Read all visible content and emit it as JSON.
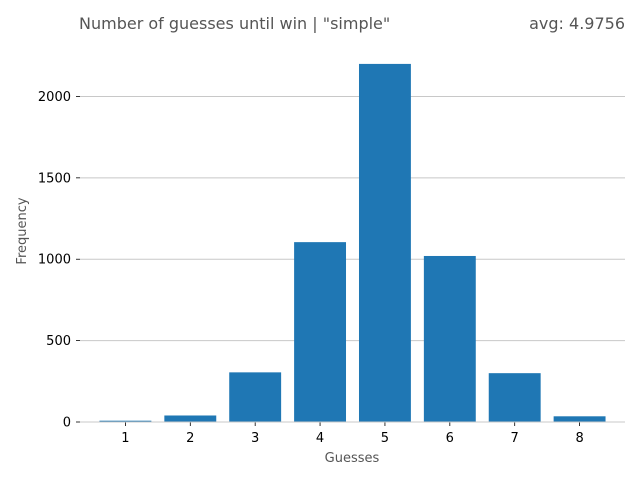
{
  "chart_data": {
    "type": "bar",
    "title": "Number of guesses until win | \"simple\"",
    "subtitle": "avg: 4.9756",
    "xlabel": "Guesses",
    "ylabel": "Frequency",
    "categories": [
      "1",
      "2",
      "3",
      "4",
      "5",
      "6",
      "7",
      "8"
    ],
    "values": [
      8,
      40,
      305,
      1105,
      2200,
      1020,
      300,
      35
    ],
    "x_ticks": [
      1,
      2,
      3,
      4,
      5,
      6,
      7,
      8
    ],
    "y_ticks": [
      0,
      500,
      1000,
      1500,
      2000
    ],
    "ylim": [
      0,
      2310
    ],
    "grid": "horizontal",
    "bar_color": "#1f77b4"
  }
}
